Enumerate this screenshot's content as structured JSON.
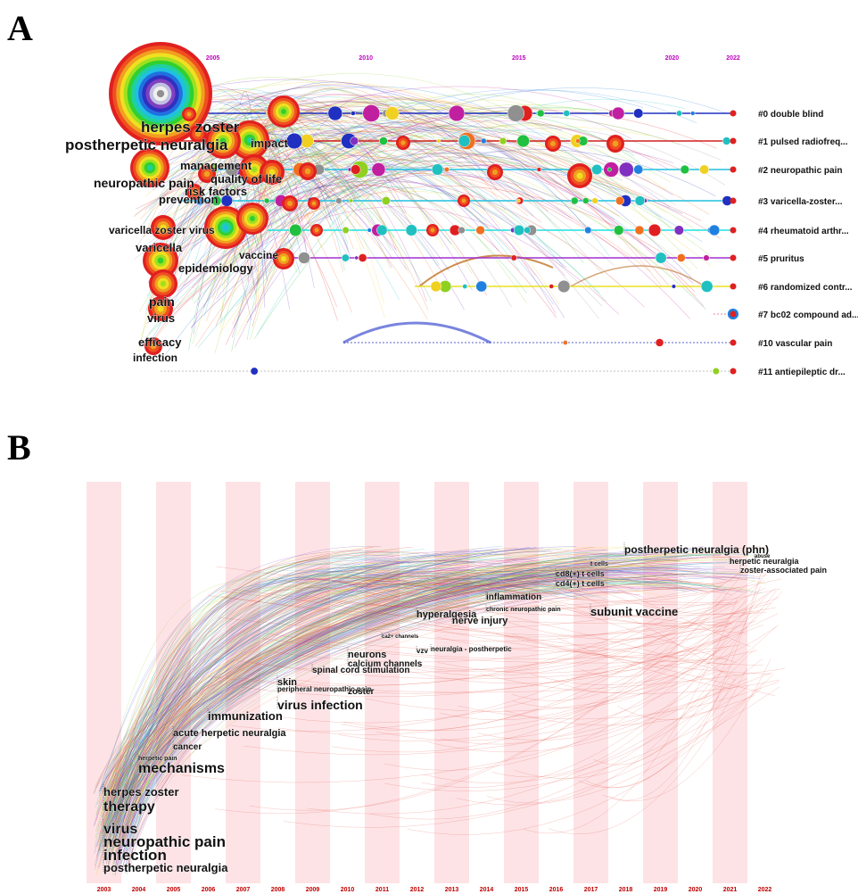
{
  "panels": {
    "a": "A",
    "b": "B"
  },
  "chart_data": [
    {
      "type": "scatter",
      "title": "",
      "year_ticks": [
        {
          "label": "2005",
          "year": 2005
        },
        {
          "label": "2010",
          "year": 2010
        },
        {
          "label": "2015",
          "year": 2015
        },
        {
          "label": "2020",
          "year": 2020
        },
        {
          "label": "2022",
          "year": 2022
        }
      ],
      "clusters": [
        {
          "label": "#0 double blind",
          "color": "#2030c0"
        },
        {
          "label": "#1 pulsed radiofreq...",
          "color": "#d02020"
        },
        {
          "label": "#2 neuropathic pain",
          "color": "#20c0e0"
        },
        {
          "label": "#3 varicella-zoster...",
          "color": "#20c0e0"
        },
        {
          "label": "#4 rheumatoid arthr...",
          "color": "#20e0e0"
        },
        {
          "label": "#5 pruritus",
          "color": "#a030d0"
        },
        {
          "label": "#6 randomized contr...",
          "color": "#e8e020"
        },
        {
          "label": "#7 bc02 compound ad...",
          "color": "#e06070"
        },
        {
          "label": "#10 vascular pain",
          "color": "#2030c0"
        },
        {
          "label": "#11 antiepileptic dr...",
          "color": "#aaaaaa"
        }
      ],
      "keywords": [
        {
          "label": "herpes zoster",
          "size": 17
        },
        {
          "label": "postherpetic neuralgia",
          "size": 17
        },
        {
          "label": "impact",
          "size": 13
        },
        {
          "label": "management",
          "size": 13
        },
        {
          "label": "neuropathic pain",
          "size": 14
        },
        {
          "label": "quality of life",
          "size": 13
        },
        {
          "label": "risk factors",
          "size": 13
        },
        {
          "label": "prevention",
          "size": 13
        },
        {
          "label": "varicella zoster virus",
          "size": 12
        },
        {
          "label": "vaccine",
          "size": 12
        },
        {
          "label": "varicella",
          "size": 13
        },
        {
          "label": "epidemiology",
          "size": 13
        },
        {
          "label": "pain",
          "size": 14
        },
        {
          "label": "virus",
          "size": 13
        },
        {
          "label": "efficacy",
          "size": 13
        },
        {
          "label": "infection",
          "size": 12
        }
      ]
    },
    {
      "type": "scatter",
      "title": "",
      "years": [
        "2003",
        "2004",
        "2005",
        "2006",
        "2007",
        "2008",
        "2009",
        "2010",
        "2011",
        "2012",
        "2013",
        "2014",
        "2015",
        "2016",
        "2017",
        "2018",
        "2019",
        "2020",
        "2021",
        "2022"
      ],
      "keywords": [
        {
          "label": "postherpetic neuralgia (phn)",
          "year": 2018,
          "size": 12
        },
        {
          "label": "abuse",
          "year": 2021,
          "size": 6
        },
        {
          "label": "herpetic neuralgia",
          "year": 2021,
          "size": 9
        },
        {
          "label": "zoster-associated pain",
          "year": 2022,
          "size": 9
        },
        {
          "label": "t cells",
          "year": 2017,
          "size": 7
        },
        {
          "label": "cd8(+) t cells",
          "year": 2016,
          "size": 9
        },
        {
          "label": "cd4(+) t cells",
          "year": 2016,
          "size": 9
        },
        {
          "label": "subunit vaccine",
          "year": 2017,
          "size": 13
        },
        {
          "label": "inflammation",
          "year": 2014,
          "size": 10
        },
        {
          "label": "chronic neuropathic pain",
          "year": 2014,
          "size": 7
        },
        {
          "label": "hyperalgesia",
          "year": 2012,
          "size": 11
        },
        {
          "label": "nerve injury",
          "year": 2013,
          "size": 11
        },
        {
          "label": "ca2+ channels",
          "year": 2011,
          "size": 6
        },
        {
          "label": "vzv",
          "year": 2012,
          "size": 8
        },
        {
          "label": "neuralgia - postherpetic",
          "year": 2013,
          "size": 8
        },
        {
          "label": "neurons",
          "year": 2010,
          "size": 11
        },
        {
          "label": "calcium channels",
          "year": 2010,
          "size": 10
        },
        {
          "label": "spinal cord stimulation",
          "year": 2009,
          "size": 10
        },
        {
          "label": "skin",
          "year": 2008,
          "size": 11
        },
        {
          "label": "peripheral neuropathic pain",
          "year": 2008,
          "size": 8
        },
        {
          "label": "zoster",
          "year": 2010,
          "size": 10
        },
        {
          "label": "virus infection",
          "year": 2008,
          "size": 14
        },
        {
          "label": "immunization",
          "year": 2006,
          "size": 13
        },
        {
          "label": "acute herpetic neuralgia",
          "year": 2005,
          "size": 11
        },
        {
          "label": "cancer",
          "year": 2005,
          "size": 10
        },
        {
          "label": "herpetic pain",
          "year": 2004,
          "size": 7
        },
        {
          "label": "mechanisms",
          "year": 2004,
          "size": 16
        },
        {
          "label": "herpes zoster",
          "year": 2003,
          "size": 13
        },
        {
          "label": "therapy",
          "year": 2003,
          "size": 16
        },
        {
          "label": "virus",
          "year": 2003,
          "size": 16
        },
        {
          "label": "neuropathic pain",
          "year": 2003,
          "size": 17
        },
        {
          "label": "infection",
          "year": 2003,
          "size": 17
        },
        {
          "label": "postherpetic neuralgia",
          "year": 2003,
          "size": 13
        }
      ]
    }
  ]
}
